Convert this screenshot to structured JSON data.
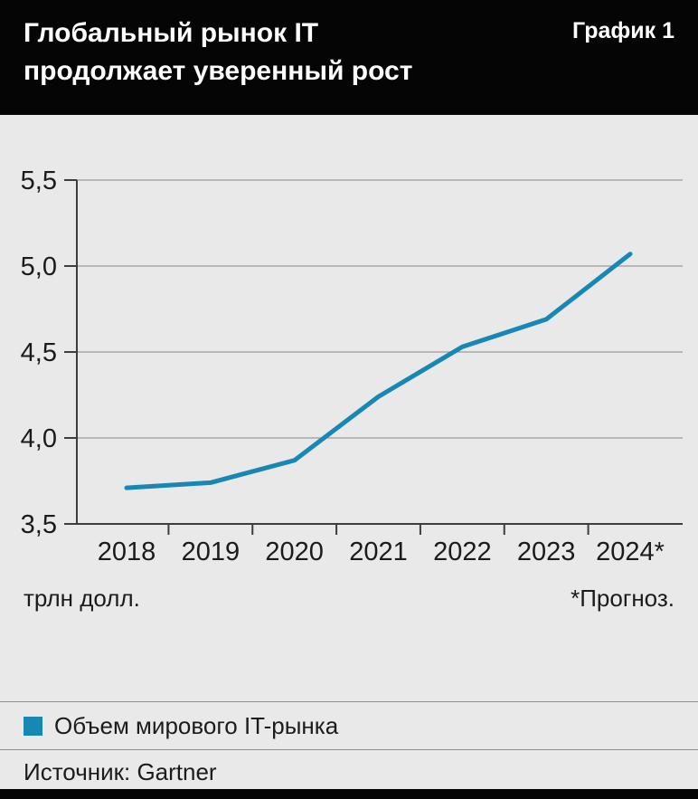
{
  "header": {
    "title_line1": "Глобальный рынок IT",
    "title_line2": "продолжает уверенный рост",
    "chart_label": "График 1"
  },
  "chart_data": {
    "type": "line",
    "categories": [
      "2018",
      "2019",
      "2020",
      "2021",
      "2022",
      "2023",
      "2024*"
    ],
    "series": [
      {
        "name": "Объем мирового IT-рынка",
        "values": [
          3.71,
          3.74,
          3.87,
          4.24,
          4.53,
          4.69,
          5.07
        ]
      }
    ],
    "ylim": [
      3.5,
      5.5
    ],
    "ytick_step": 0.5,
    "ytick_labels": [
      "3,5",
      "4,0",
      "4,5",
      "5,0",
      "5,5"
    ],
    "grid": true,
    "legend_position": "bottom",
    "line_color": "#1787b4",
    "unit_label": "трлн долл.",
    "footnote": "*Прогноз."
  },
  "footer": {
    "source": "Источник: Gartner"
  },
  "colors": {
    "header_bg": "#050505",
    "page_bg": "#e9e9e9",
    "grid_line": "#9b9b9b",
    "axis_line": "#3d3d3d",
    "accent": "#1787b4"
  }
}
